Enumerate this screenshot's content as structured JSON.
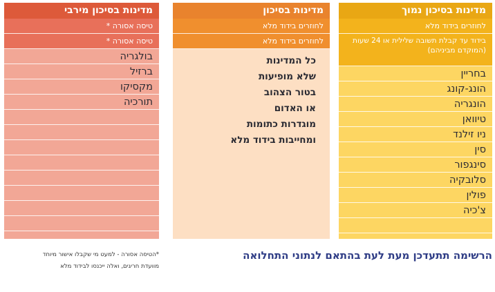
{
  "columns": {
    "low": {
      "header": "מדינות בסיכון נמוך",
      "sub1": "לחוזרים בידוד מלא",
      "sub2": "בידוד עד קבלת תשובה שלילית או 24 שעות (המוקדם מביניהם)",
      "countries": [
        "בחריין",
        "הונג-קונג",
        "הונגריה",
        "טיוואן",
        "ניו זילנד",
        "סין",
        "סינגפור",
        "סלובקיה",
        "פולין",
        "צ'כיה"
      ]
    },
    "mid": {
      "header": "מדינות בסיכון",
      "sub1": "לחוזרים בידוד מלא",
      "sub2": "לחוזרים בידוד מלא",
      "lines": [
        "כל המדינות",
        "שלא מופיעות",
        "בטור הצהוב",
        "או האדום",
        "מוגדרות כתומות",
        "ומחייבות בידוד מלא"
      ]
    },
    "high": {
      "header": "מדינות בסיכון מירבי",
      "sub1": "טיסה אסורה *",
      "sub2": "טיסה אסורה *",
      "countries": [
        "בולגריה",
        "ברזיל",
        "מקסיקו",
        "תורכיה"
      ]
    }
  },
  "footer": {
    "main": "הרשימה תתעדכן מעת לעת בהתאם לנתוני התחלואה",
    "note_line1": "*הטיסה אסורה - למעט מי שקבלו אישור מיוחד",
    "note_line2": "מוועדת חריגים, ואלה ייכנסו לבידוד מלא"
  }
}
